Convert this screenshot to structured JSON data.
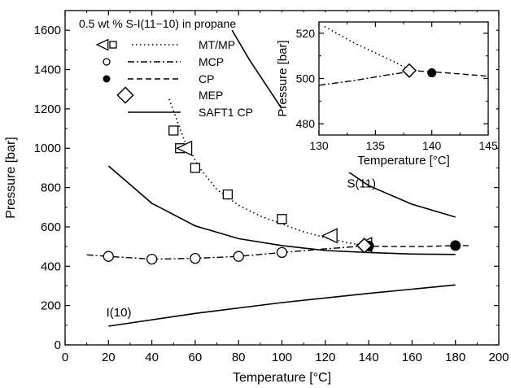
{
  "chart_data": [
    {
      "type": "line",
      "title": "0.5 wt % S-I(11−10) in propane",
      "xlabel": "Temperature [°C]",
      "ylabel": "Pressure [bar]",
      "xlim": [
        0,
        200
      ],
      "ylim": [
        0,
        1700
      ],
      "xticks": [
        0,
        20,
        40,
        60,
        80,
        100,
        120,
        140,
        160,
        180,
        200
      ],
      "yticks": [
        0,
        200,
        400,
        600,
        800,
        1000,
        1200,
        1400,
        1600
      ],
      "grid": false,
      "legend_position": "top-left",
      "legend": [
        {
          "label": "MT/MP",
          "marker": "triangle+square",
          "line": "dotted"
        },
        {
          "label": "MCP",
          "marker": "open-circle",
          "line": "dash-dot"
        },
        {
          "label": "CP",
          "marker": "filled-circle",
          "line": "dashed"
        },
        {
          "label": "MEP",
          "marker": "diamond",
          "line": "none"
        },
        {
          "label": "SAFT1 CP",
          "marker": "none",
          "line": "solid"
        }
      ],
      "annotations": [
        "S(11)",
        "I(10)"
      ],
      "series": [
        {
          "name": "MT/MP",
          "kind": "squares",
          "x": [
            50,
            53,
            60,
            75,
            100
          ],
          "y": [
            1090,
            1000,
            900,
            765,
            640
          ]
        },
        {
          "name": "MT/MP",
          "kind": "triangles",
          "x": [
            55,
            122,
            138
          ],
          "y": [
            1000,
            555,
            510
          ]
        },
        {
          "name": "MT/MP",
          "kind": "dotted-fit",
          "x": [
            48,
            55,
            62,
            70,
            80,
            90,
            100,
            110,
            120,
            130,
            138
          ],
          "y": [
            1250,
            1040,
            900,
            790,
            710,
            655,
            615,
            575,
            545,
            520,
            505
          ]
        },
        {
          "name": "MCP",
          "kind": "open-circles",
          "x": [
            20,
            40,
            60,
            80,
            100
          ],
          "y": [
            450,
            436,
            440,
            450,
            470
          ]
        },
        {
          "name": "MCP",
          "kind": "dash-dot",
          "x": [
            10,
            20,
            40,
            60,
            80,
            100,
            120,
            138
          ],
          "y": [
            458,
            450,
            436,
            440,
            450,
            470,
            488,
            503
          ]
        },
        {
          "name": "CP",
          "kind": "filled-circles",
          "x": [
            140,
            180
          ],
          "y": [
            503,
            505
          ]
        },
        {
          "name": "CP",
          "kind": "dashed",
          "x": [
            138,
            150,
            165,
            180,
            186
          ],
          "y": [
            503,
            500,
            500,
            505,
            505
          ]
        },
        {
          "name": "MEP",
          "kind": "diamond",
          "x": [
            138
          ],
          "y": [
            505
          ]
        },
        {
          "name": "SAFT1 CP",
          "kind": "solid",
          "x": [
            20,
            40,
            60,
            80,
            100,
            120,
            140,
            160,
            180
          ],
          "y": [
            910,
            720,
            605,
            540,
            505,
            480,
            470,
            462,
            460
          ]
        },
        {
          "name": "S(11)",
          "kind": "solid",
          "x": [
            77,
            85,
            100,
            120,
            140,
            160,
            180
          ],
          "y": [
            1600,
            1450,
            1200,
            960,
            810,
            715,
            650
          ]
        },
        {
          "name": "I(10)",
          "kind": "solid",
          "x": [
            20,
            60,
            100,
            140,
            180
          ],
          "y": [
            95,
            160,
            215,
            262,
            305
          ]
        }
      ]
    },
    {
      "type": "line",
      "title": "",
      "xlabel": "Temperature [°C]",
      "ylabel": "Pressure [bar]",
      "xlim": [
        130,
        145
      ],
      "ylim": [
        475,
        525
      ],
      "xticks": [
        130,
        135,
        140,
        145
      ],
      "yticks": [
        480,
        500,
        520
      ],
      "grid": false,
      "series": [
        {
          "name": "MT/MP",
          "kind": "dotted-fit",
          "x": [
            130.5,
            133,
            136,
            138
          ],
          "y": [
            523,
            516,
            509,
            504
          ]
        },
        {
          "name": "MCP",
          "kind": "dash-dot",
          "x": [
            130,
            133,
            136,
            138
          ],
          "y": [
            497,
            499,
            501.5,
            503
          ]
        },
        {
          "name": "CP",
          "kind": "dashed",
          "x": [
            138,
            140,
            142.5,
            145
          ],
          "y": [
            503.5,
            503,
            502,
            501
          ]
        },
        {
          "name": "MEP",
          "kind": "diamond",
          "x": [
            138
          ],
          "y": [
            503.5
          ]
        },
        {
          "name": "CP",
          "kind": "filled-circles",
          "x": [
            140
          ],
          "y": [
            502.5
          ]
        }
      ]
    }
  ]
}
